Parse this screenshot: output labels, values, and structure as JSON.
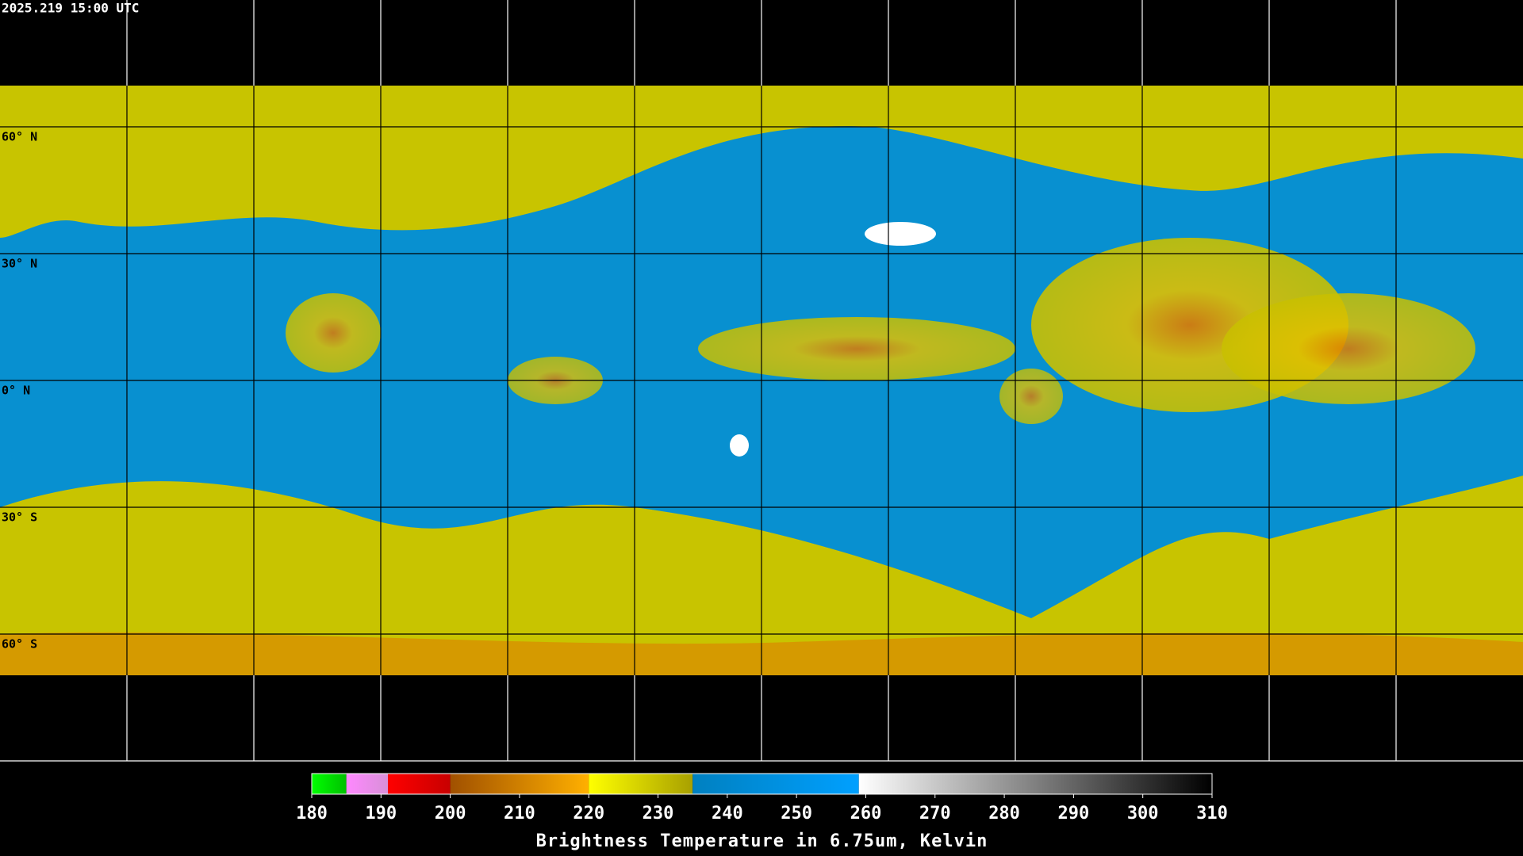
{
  "header": {
    "timestamp": "2025.219 15:00 UTC"
  },
  "map": {
    "lat_labels": [
      "60° N",
      "30° N",
      "0° N",
      "30° S",
      "60° S"
    ]
  },
  "colorbar": {
    "range": [
      180,
      310
    ],
    "ticks": [
      180,
      190,
      200,
      210,
      220,
      230,
      240,
      250,
      260,
      270,
      280,
      290,
      300,
      310
    ],
    "label": "Brightness Temperature in 6.75um, Kelvin",
    "segments": [
      {
        "from": 180,
        "to": 185,
        "colors": [
          "#00ff00",
          "#00c000"
        ]
      },
      {
        "from": 185,
        "to": 191,
        "colors": [
          "#ff88ff",
          "#d890d8"
        ]
      },
      {
        "from": 191,
        "to": 200,
        "colors": [
          "#ff0000",
          "#c80000"
        ]
      },
      {
        "from": 200,
        "to": 220,
        "colors": [
          "#a05000",
          "#ffb000"
        ]
      },
      {
        "from": 220,
        "to": 235,
        "colors": [
          "#ffff00",
          "#a8a000"
        ]
      },
      {
        "from": 235,
        "to": 259,
        "colors": [
          "#0080c0",
          "#00a0ff"
        ]
      },
      {
        "from": 259,
        "to": 310,
        "colors": [
          "#ffffff",
          "#000000"
        ]
      }
    ]
  }
}
